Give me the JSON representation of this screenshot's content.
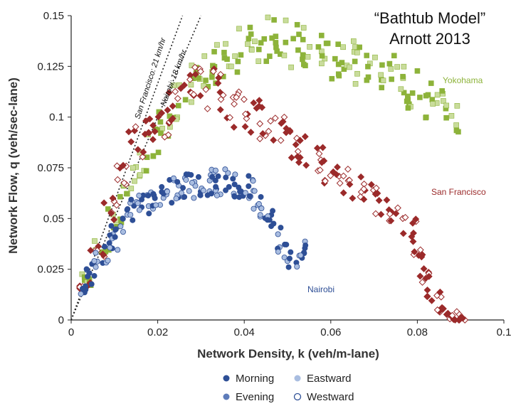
{
  "annotation": {
    "line1": "“Bathtub Model”",
    "line2": "Arnott 2013"
  },
  "colors": {
    "yokohama": "#8db33a",
    "sanfrancisco": "#9b2a2a",
    "nairobi": "#2e4f96",
    "nairobi_light": "#a9bde0"
  },
  "legend": {
    "morning": "Morning",
    "evening": "Evening",
    "eastward": "Eastward",
    "westward": "Westward"
  },
  "chart_data": {
    "type": "scatter",
    "xlabel": "Network Density, k (veh/m-lane)",
    "ylabel": "Network Flow, q (veh/sec-lane)",
    "xlim": [
      0,
      0.1
    ],
    "ylim": [
      0,
      0.15
    ],
    "xticks": [
      "0",
      "0.02",
      "0.04",
      "0.06",
      "0.08",
      "0.1"
    ],
    "yticks": [
      "0",
      "0.025",
      "0.05",
      "0.075",
      "0.1",
      "0.125",
      "0.15"
    ],
    "reference_lines": [
      {
        "label": "San Francisco: 21 km/hr",
        "slope": 5.83
      },
      {
        "label": "Nairobi: 18 km/hr",
        "slope": 5.0
      }
    ],
    "series": [
      {
        "name": "Yokohama",
        "marker": "square",
        "color": "#8db33a",
        "x": [
          0.004,
          0.007,
          0.01,
          0.013,
          0.016,
          0.019,
          0.022,
          0.025,
          0.028,
          0.031,
          0.034,
          0.037,
          0.04,
          0.043,
          0.046,
          0.049,
          0.052,
          0.055,
          0.058,
          0.061,
          0.064,
          0.067,
          0.07,
          0.073,
          0.076,
          0.079,
          0.082,
          0.085,
          0.088
        ],
        "y": [
          0.02,
          0.035,
          0.05,
          0.063,
          0.077,
          0.088,
          0.098,
          0.108,
          0.116,
          0.122,
          0.127,
          0.131,
          0.134,
          0.136,
          0.138,
          0.137,
          0.136,
          0.134,
          0.132,
          0.13,
          0.128,
          0.127,
          0.125,
          0.122,
          0.118,
          0.113,
          0.108,
          0.104,
          0.1
        ]
      },
      {
        "name": "San Francisco",
        "marker": "diamond",
        "color": "#9b2a2a",
        "x": [
          0.003,
          0.006,
          0.009,
          0.012,
          0.015,
          0.018,
          0.021,
          0.024,
          0.027,
          0.03,
          0.033,
          0.036,
          0.039,
          0.042,
          0.045,
          0.048,
          0.051,
          0.054,
          0.057,
          0.06,
          0.063,
          0.066,
          0.069,
          0.072,
          0.075,
          0.078,
          0.08,
          0.082,
          0.084,
          0.086,
          0.088,
          0.09
        ],
        "y": [
          0.018,
          0.035,
          0.055,
          0.072,
          0.088,
          0.096,
          0.098,
          0.105,
          0.112,
          0.116,
          0.114,
          0.109,
          0.104,
          0.1,
          0.097,
          0.093,
          0.088,
          0.083,
          0.078,
          0.073,
          0.068,
          0.065,
          0.062,
          0.058,
          0.054,
          0.046,
          0.035,
          0.022,
          0.012,
          0.005,
          0.002,
          0.001
        ]
      },
      {
        "name": "Nairobi",
        "marker": "circle",
        "color": "#2e4f96",
        "x": [
          0.003,
          0.005,
          0.007,
          0.009,
          0.011,
          0.013,
          0.015,
          0.017,
          0.019,
          0.021,
          0.023,
          0.025,
          0.027,
          0.029,
          0.031,
          0.033,
          0.035,
          0.037,
          0.039,
          0.041,
          0.043,
          0.045,
          0.047,
          0.049,
          0.051,
          0.053
        ],
        "y": [
          0.015,
          0.024,
          0.032,
          0.039,
          0.045,
          0.051,
          0.055,
          0.058,
          0.06,
          0.062,
          0.064,
          0.065,
          0.066,
          0.066,
          0.067,
          0.068,
          0.068,
          0.068,
          0.067,
          0.065,
          0.061,
          0.055,
          0.047,
          0.038,
          0.03,
          0.035
        ]
      }
    ],
    "series_labels": [
      "Yokohama",
      "San Francisco",
      "Nairobi"
    ]
  }
}
